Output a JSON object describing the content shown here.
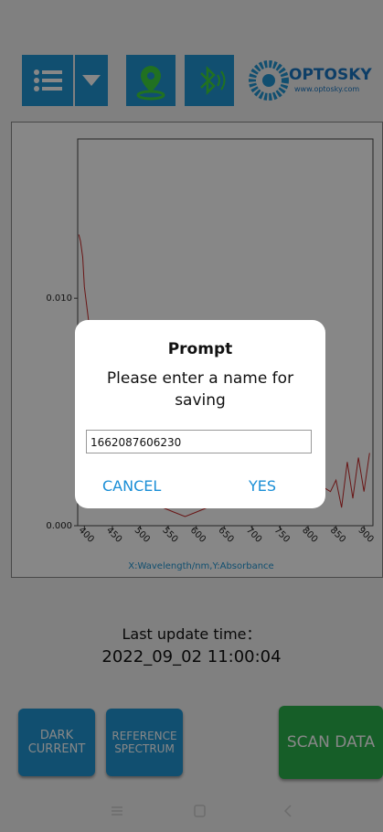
{
  "toolbar": {
    "logo": "OPTOSKY",
    "logo_url": "www.optosky.com"
  },
  "chart_data": {
    "type": "line",
    "x_label": "X:Wavelength/nm,Y:Absorbance",
    "xlim": [
      388,
      916
    ],
    "ylim": [
      0,
      0.017
    ],
    "xticks": [
      400,
      450,
      500,
      550,
      600,
      650,
      700,
      750,
      800,
      850,
      900
    ],
    "yticks": [
      {
        "value": 0,
        "label": "0.000"
      },
      {
        "value": 0.01,
        "label": "0.010"
      }
    ],
    "color": "#c62828",
    "x": [
      390,
      393,
      397,
      400,
      405,
      410,
      420,
      430,
      440,
      450,
      460,
      480,
      500,
      520,
      540,
      560,
      580,
      600,
      620,
      640,
      660,
      680,
      700,
      720,
      740,
      760,
      780,
      800,
      820,
      840,
      850,
      860,
      870,
      880,
      890,
      900,
      910
    ],
    "values": [
      0.0128,
      0.0125,
      0.0118,
      0.0105,
      0.0095,
      0.0085,
      0.007,
      0.005,
      0.004,
      0.003,
      0.0025,
      0.002,
      0.0015,
      0.001,
      0.0008,
      0.0006,
      0.0004,
      0.0006,
      0.0008,
      0.001,
      0.0012,
      0.001,
      0.0013,
      0.0012,
      0.001,
      0.0012,
      0.0014,
      0.0016,
      0.0018,
      0.0015,
      0.002,
      0.0008,
      0.0028,
      0.0012,
      0.003,
      0.0015,
      0.0032
    ]
  },
  "status": {
    "label": "Last update time：",
    "time": "2022_09_02 11:00:04"
  },
  "buttons": {
    "dark": "DARK CURRENT",
    "reference": "REFERENCE SPECTRUM",
    "scan": "SCAN DATA"
  },
  "dialog": {
    "title": "Prompt",
    "message": "Please enter a name for saving",
    "input": "1662087606230",
    "cancel": "CANCEL",
    "confirm": "YES"
  }
}
